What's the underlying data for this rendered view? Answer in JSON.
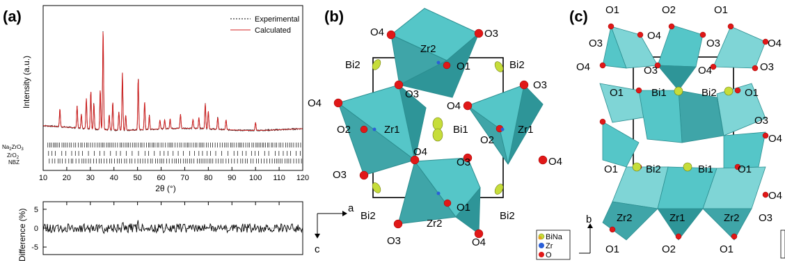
{
  "panels": {
    "a": {
      "label": "(a)",
      "main_plot": {
        "legend": {
          "experimental": "Experimental",
          "calculated": "Calculated"
        },
        "ylabel": "Intensity (a.u.)",
        "xlabel": "2θ (°)",
        "xticks": [
          "10",
          "20",
          "30",
          "40",
          "50",
          "60",
          "70",
          "80",
          "90",
          "100",
          "110",
          "120"
        ],
        "phases": [
          "Na2ZrO3",
          "ZrO2",
          "NBZ"
        ]
      },
      "diff_plot": {
        "ylabel": "Difference (%)",
        "yticks": [
          "5",
          "0",
          "-5"
        ]
      }
    },
    "b": {
      "label": "(b)",
      "atoms": [
        "O4",
        "Zr2",
        "O3",
        "Bi2",
        "O1",
        "Bi2",
        "O3",
        "O4",
        "O3",
        "O4",
        "Zr1",
        "Bi1",
        "Zr1",
        "O2",
        "O2",
        "O4",
        "O3",
        "O3",
        "O4",
        "Bi2",
        "O1",
        "Bi2",
        "Zr2",
        "O3",
        "O4"
      ],
      "axes": {
        "a": "a",
        "c": "c"
      }
    },
    "c": {
      "label": "(c)",
      "atoms": [
        "O1",
        "O2",
        "O1",
        "O3",
        "O4",
        "O3",
        "O4",
        "O4",
        "O3",
        "O4",
        "O3",
        "O1",
        "Bi1",
        "Bi2",
        "O1",
        "O3",
        "O4",
        "O1",
        "Bi2",
        "Bi1",
        "O1",
        "O4",
        "Zr2",
        "Zr1",
        "Zr2",
        "O3",
        "O1",
        "O2",
        "O1"
      ],
      "axes": {
        "b": "b"
      },
      "legend": {
        "binA": "BiNa",
        "zr": "Zr",
        "o": "O"
      }
    }
  },
  "chart_data": {
    "type": "line",
    "title": "",
    "xlabel": "2θ (°)",
    "ylabel": "Intensity (a.u.)",
    "xlim": [
      10,
      120
    ],
    "series": [
      {
        "name": "Experimental",
        "style": "dashed",
        "color": "#000000"
      },
      {
        "name": "Calculated",
        "color": "#d42020",
        "peaks": [
          {
            "x": 17.1,
            "y": 0.18
          },
          {
            "x": 24.4,
            "y": 0.22
          },
          {
            "x": 26.2,
            "y": 0.14
          },
          {
            "x": 28.3,
            "y": 0.3
          },
          {
            "x": 30.2,
            "y": 0.38
          },
          {
            "x": 31.5,
            "y": 0.26
          },
          {
            "x": 34.2,
            "y": 0.4
          },
          {
            "x": 35.4,
            "y": 1.0
          },
          {
            "x": 38.0,
            "y": 0.15
          },
          {
            "x": 39.5,
            "y": 0.28
          },
          {
            "x": 42.1,
            "y": 0.18
          },
          {
            "x": 43.6,
            "y": 0.57
          },
          {
            "x": 45.0,
            "y": 0.15
          },
          {
            "x": 50.3,
            "y": 0.52
          },
          {
            "x": 53.0,
            "y": 0.28
          },
          {
            "x": 55.0,
            "y": 0.14
          },
          {
            "x": 59.5,
            "y": 0.09
          },
          {
            "x": 61.5,
            "y": 0.09
          },
          {
            "x": 63.8,
            "y": 0.1
          },
          {
            "x": 68.2,
            "y": 0.14
          },
          {
            "x": 73.5,
            "y": 0.09
          },
          {
            "x": 76.0,
            "y": 0.11
          },
          {
            "x": 78.7,
            "y": 0.25
          },
          {
            "x": 80.0,
            "y": 0.18
          },
          {
            "x": 84.0,
            "y": 0.12
          },
          {
            "x": 87.5,
            "y": 0.1
          },
          {
            "x": 100.0,
            "y": 0.08
          }
        ]
      }
    ],
    "difference": {
      "ylabel": "Difference (%)",
      "ylim": [
        -7,
        7
      ],
      "yticks": [
        5,
        0,
        -5
      ]
    },
    "phase_ticks": [
      "Na2ZrO3",
      "ZrO2",
      "NBZ"
    ]
  }
}
